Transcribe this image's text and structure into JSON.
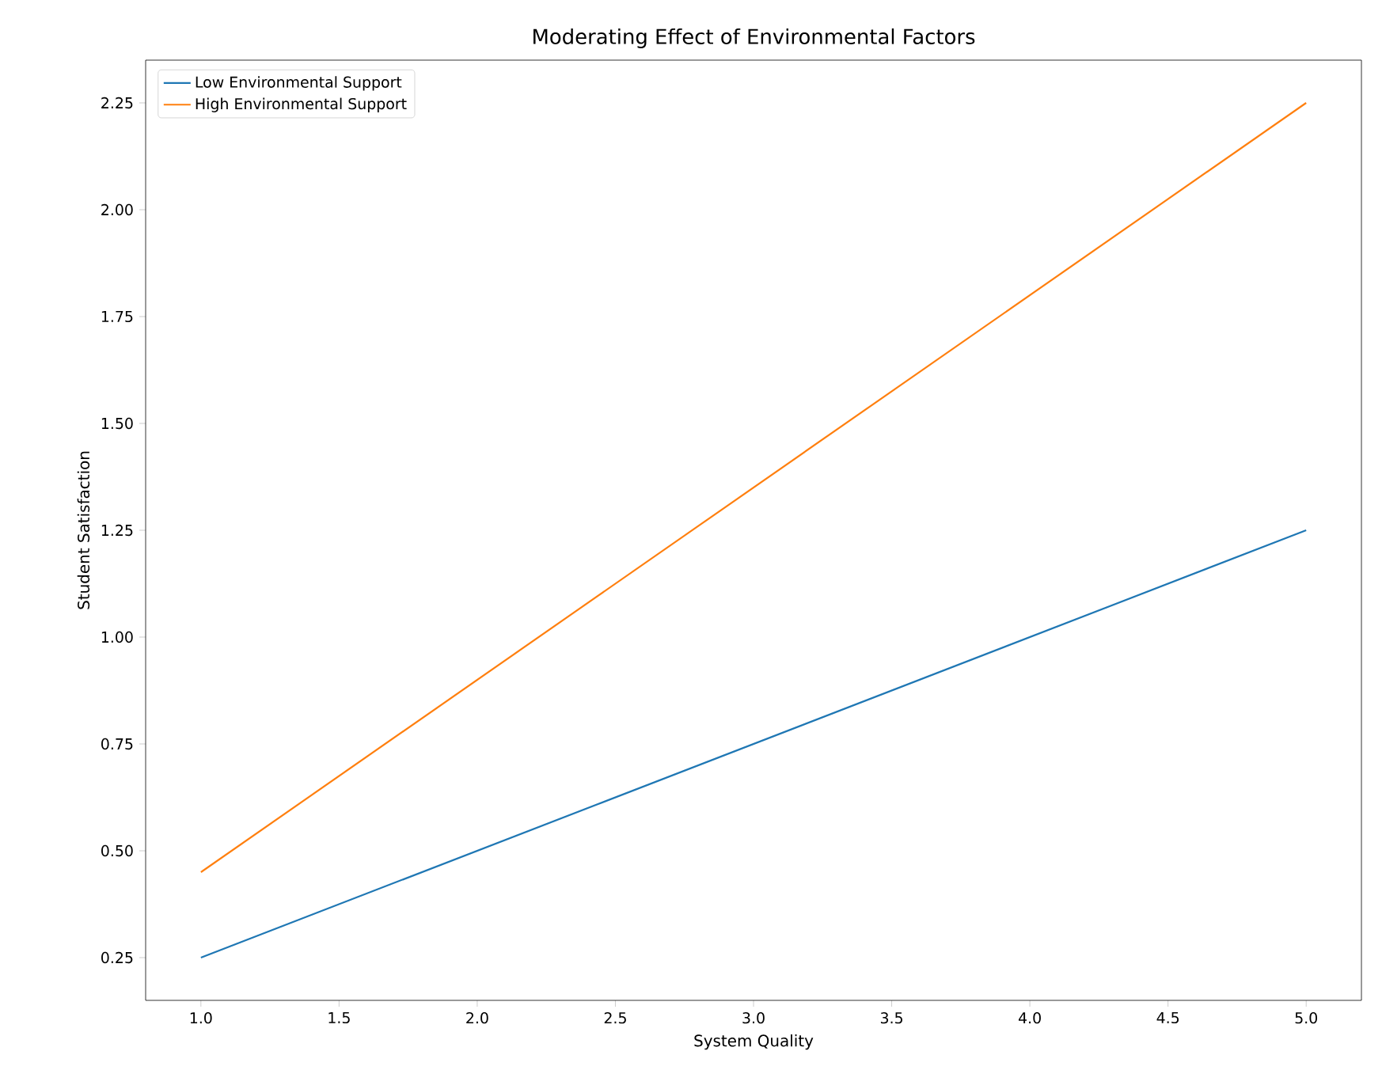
{
  "chart_data": {
    "type": "line",
    "title": "Moderating Effect of Environmental Factors",
    "xlabel": "System Quality",
    "ylabel": "Student Satisfaction",
    "series": [
      {
        "name": "Low Environmental Support",
        "color": "#1f77b4",
        "values": [
          0.25,
          1.25
        ]
      },
      {
        "name": "High Environmental Support",
        "color": "#ff7f0e",
        "values": [
          0.45,
          2.25
        ]
      }
    ],
    "x": [
      1,
      5
    ],
    "xlim": [
      0.8,
      5.2
    ],
    "ylim": [
      0.15,
      2.35
    ],
    "xticks": [
      {
        "value": 1,
        "label": "1.0"
      },
      {
        "value": 1.5,
        "label": "1.5"
      },
      {
        "value": 2,
        "label": "2.0"
      },
      {
        "value": 2.5,
        "label": "2.5"
      },
      {
        "value": 3,
        "label": "3.0"
      },
      {
        "value": 3.5,
        "label": "3.5"
      },
      {
        "value": 4,
        "label": "4.0"
      },
      {
        "value": 4.5,
        "label": "4.5"
      },
      {
        "value": 5,
        "label": "5.0"
      }
    ],
    "yticks": [
      {
        "value": 0.25,
        "label": "0.25"
      },
      {
        "value": 0.5,
        "label": "0.50"
      },
      {
        "value": 0.75,
        "label": "0.75"
      },
      {
        "value": 1,
        "label": "1.00"
      },
      {
        "value": 1.25,
        "label": "1.25"
      },
      {
        "value": 1.5,
        "label": "1.50"
      },
      {
        "value": 1.75,
        "label": "1.75"
      },
      {
        "value": 2,
        "label": "2.00"
      },
      {
        "value": 2.25,
        "label": "2.25"
      }
    ],
    "legend": "top left",
    "grid": false,
    "marker": "none",
    "line_style": "solid"
  }
}
